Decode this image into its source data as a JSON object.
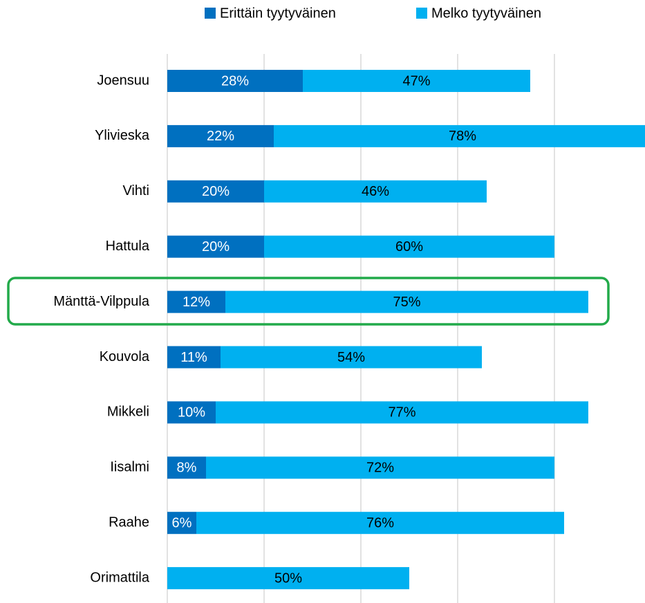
{
  "chart_data": {
    "type": "stacked-bar-horizontal",
    "categories": [
      "Joensuu",
      "Ylivieska",
      "Vihti",
      "Hattula",
      "Mänttä-Vilppula",
      "Kouvola",
      "Mikkeli",
      "Iisalmi",
      "Raahe",
      "Orimattila"
    ],
    "series": [
      {
        "name": "Erittäin tyytyväinen",
        "color": "#0070c0",
        "values": [
          28,
          22,
          20,
          20,
          12,
          11,
          10,
          8,
          6,
          0
        ],
        "value_labels": [
          "28%",
          "22%",
          "20%",
          "20%",
          "12%",
          "11%",
          "10%",
          "8%",
          "6%",
          "%"
        ]
      },
      {
        "name": "Melko tyytyväinen",
        "color": "#00b0f0",
        "values": [
          47,
          78,
          46,
          60,
          75,
          54,
          77,
          72,
          76,
          50
        ],
        "value_labels": [
          "47%",
          "78%",
          "46%",
          "60%",
          "75%",
          "54%",
          "77%",
          "72%",
          "76%",
          "50%"
        ]
      }
    ],
    "xlim": [
      0,
      100
    ],
    "xticks": [
      0,
      20,
      40,
      60,
      80
    ],
    "grid": true,
    "legend": "top"
  }
}
